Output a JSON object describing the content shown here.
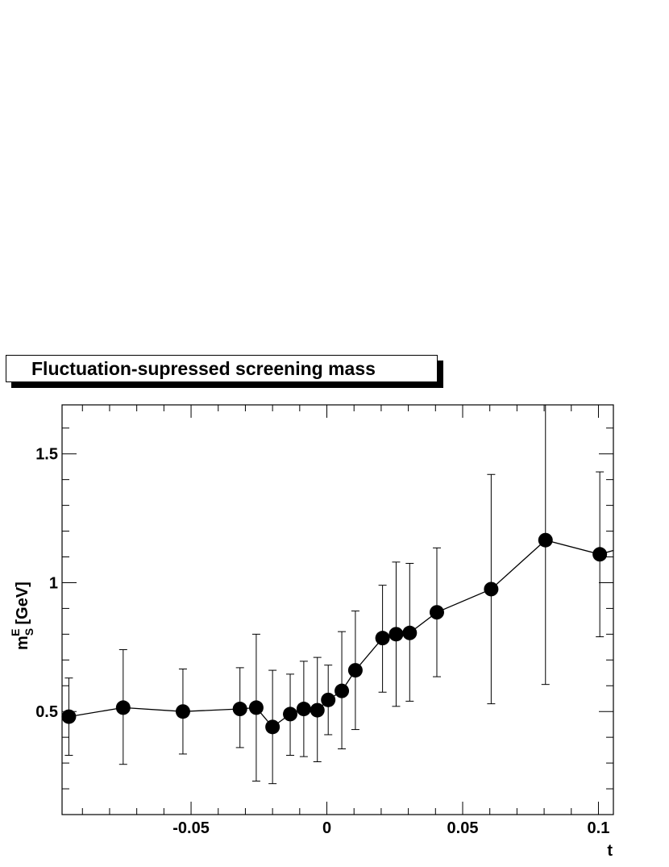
{
  "chart_data": {
    "type": "scatter",
    "title": "Fluctuation-supressed screening mass",
    "xlabel": "t",
    "ylabel_main": "m",
    "ylabel_sup": "E",
    "ylabel_sub": "S",
    "ylabel_unit": "[GeV]",
    "xlim": [
      -0.0975,
      0.1055
    ],
    "ylim": [
      0.1,
      1.69
    ],
    "x_ticks": [
      -0.05,
      0,
      0.05,
      0.1
    ],
    "x_tick_labels": [
      "-0.05",
      "0",
      "0.05",
      "0.1"
    ],
    "y_ticks": [
      0.5,
      1,
      1.5
    ],
    "y_tick_labels": [
      "0.5",
      "1",
      "1.5"
    ],
    "line": true,
    "marker": "filled-circle",
    "points": [
      {
        "x": -0.095,
        "y": 0.48,
        "err_lo": 0.33,
        "err_hi": 0.63
      },
      {
        "x": -0.075,
        "y": 0.515,
        "err_lo": 0.295,
        "err_hi": 0.74
      },
      {
        "x": -0.053,
        "y": 0.5,
        "err_lo": 0.335,
        "err_hi": 0.665
      },
      {
        "x": -0.032,
        "y": 0.51,
        "err_lo": 0.36,
        "err_hi": 0.67
      },
      {
        "x": -0.026,
        "y": 0.515,
        "err_lo": 0.23,
        "err_hi": 0.8
      },
      {
        "x": -0.02,
        "y": 0.44,
        "err_lo": 0.22,
        "err_hi": 0.66
      },
      {
        "x": -0.0135,
        "y": 0.49,
        "err_lo": 0.33,
        "err_hi": 0.645
      },
      {
        "x": -0.0085,
        "y": 0.51,
        "err_lo": 0.325,
        "err_hi": 0.695
      },
      {
        "x": -0.0035,
        "y": 0.505,
        "err_lo": 0.305,
        "err_hi": 0.71
      },
      {
        "x": 0.0005,
        "y": 0.545,
        "err_lo": 0.41,
        "err_hi": 0.68
      },
      {
        "x": 0.0055,
        "y": 0.58,
        "err_lo": 0.355,
        "err_hi": 0.81
      },
      {
        "x": 0.0105,
        "y": 0.66,
        "err_lo": 0.43,
        "err_hi": 0.89
      },
      {
        "x": 0.0205,
        "y": 0.785,
        "err_lo": 0.575,
        "err_hi": 0.99
      },
      {
        "x": 0.0255,
        "y": 0.8,
        "err_lo": 0.52,
        "err_hi": 1.08
      },
      {
        "x": 0.0305,
        "y": 0.805,
        "err_lo": 0.54,
        "err_hi": 1.075
      },
      {
        "x": 0.0405,
        "y": 0.885,
        "err_lo": 0.635,
        "err_hi": 1.135
      },
      {
        "x": 0.0605,
        "y": 0.975,
        "err_lo": 0.53,
        "err_hi": 1.42
      },
      {
        "x": 0.0805,
        "y": 1.165,
        "err_lo": 0.605,
        "err_hi": 1.69
      },
      {
        "x": 0.1005,
        "y": 1.11,
        "err_lo": 0.79,
        "err_hi": 1.43
      }
    ],
    "line_end": {
      "x": 0.1055,
      "y": 1.125
    }
  }
}
